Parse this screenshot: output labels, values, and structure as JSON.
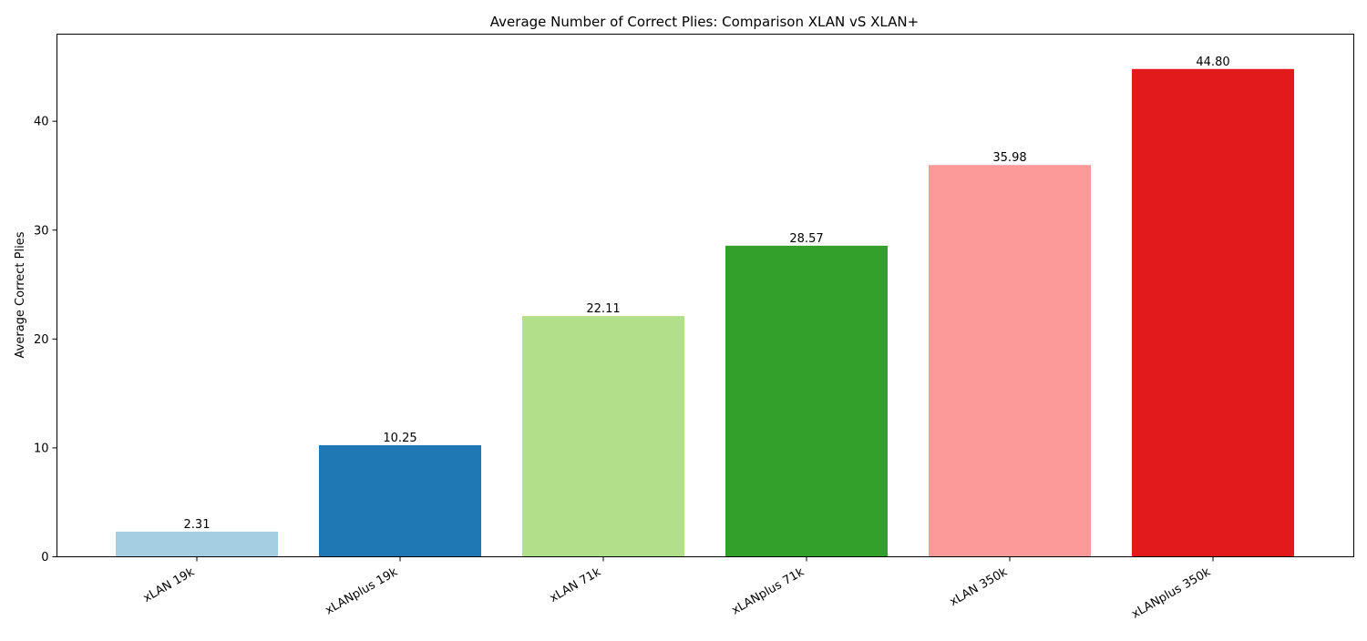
{
  "chart_data": {
    "type": "bar",
    "title": "Average Number of Correct Plies: Comparison XLAN vS XLAN+",
    "xlabel": "",
    "ylabel": "Average Correct Plies",
    "categories": [
      "xLAN 19k",
      "xLANplus 19k",
      "xLAN 71k",
      "xLANplus 71k",
      "xLAN 350k",
      "xLANplus 350k"
    ],
    "values": [
      2.31,
      10.25,
      22.11,
      28.57,
      35.98,
      44.8
    ],
    "value_labels": [
      "2.31",
      "10.25",
      "22.11",
      "28.57",
      "35.98",
      "44.80"
    ],
    "colors": [
      "#a6cee3",
      "#1f78b4",
      "#b2df8a",
      "#33a02c",
      "#fb9a99",
      "#e31a1c"
    ],
    "ylim": [
      0,
      48
    ],
    "yticks": [
      0,
      10,
      20,
      30,
      40
    ],
    "ytick_labels": [
      "0",
      "10",
      "20",
      "30",
      "40"
    ],
    "grid": false,
    "legend": "none"
  }
}
